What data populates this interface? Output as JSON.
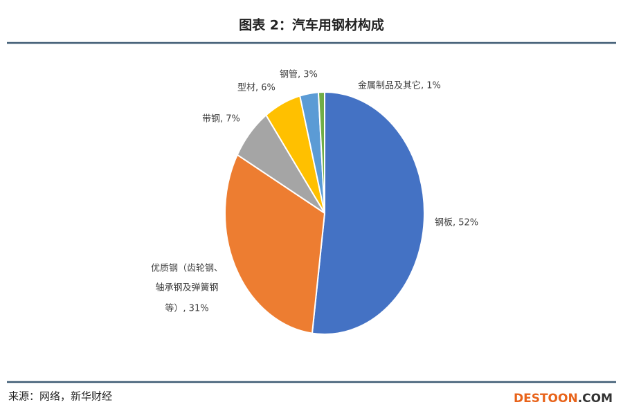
{
  "title": "图表 2：汽车用钢材构成",
  "chart_data": {
    "type": "pie",
    "categories": [
      [
        "钢板, 52%"
      ],
      [
        "优质钢（齿轮钢、",
        "轴承钢及弹簧钢",
        "等）, 31%"
      ],
      [
        "带钢, 7%"
      ],
      [
        "型材, 6%"
      ],
      [
        "钢管, 3%"
      ],
      [
        "金属制品及其它, 1%"
      ]
    ],
    "values": [
      52,
      31,
      7,
      6,
      3,
      1
    ],
    "colors": [
      "#4472c4",
      "#ed7d31",
      "#a5a5a5",
      "#ffc000",
      "#5b9bd5",
      "#70ad47"
    ]
  },
  "source": "来源：网络，新华财经",
  "watermark": {
    "brand": "DESTOON",
    "suffix": ".COM"
  }
}
